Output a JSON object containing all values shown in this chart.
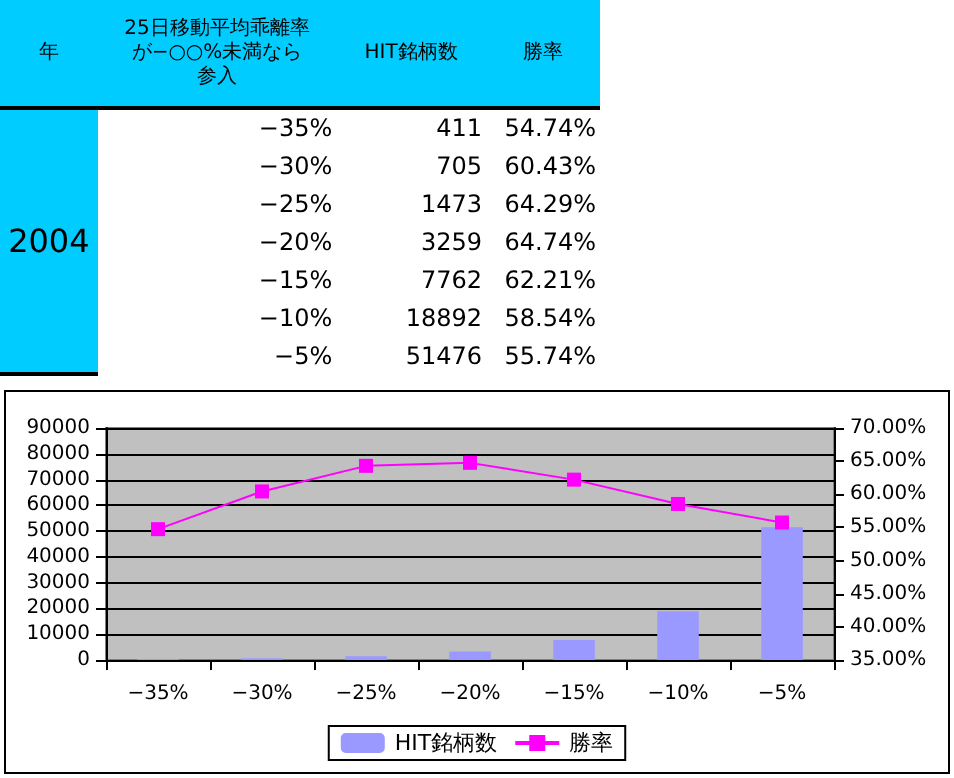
{
  "chart_data": {
    "type": "bar",
    "categories": [
      "−35%",
      "−30%",
      "−25%",
      "−20%",
      "−15%",
      "−10%",
      "−5%"
    ],
    "series": [
      {
        "name": "HIT銘柄数",
        "color": "#9999ff",
        "values": [
          411,
          705,
          1473,
          3259,
          7762,
          18892,
          51476
        ]
      },
      {
        "name": "勝率",
        "type": "line",
        "axis": "y2",
        "color": "#ff00ff",
        "values": [
          54.74,
          60.43,
          64.29,
          64.74,
          62.21,
          58.54,
          55.74
        ]
      }
    ],
    "annotations": [
      "年",
      "25日移動平均乖離率が−○○%未満なら参入",
      "2004",
      "411",
      "54.74%",
      "705",
      "60.43%",
      "1473",
      "64.29%",
      "3259",
      "64.74%",
      "7762",
      "62.21%",
      "18892",
      "58.54%",
      "51476",
      "55.74%"
    ],
    "ylim": [
      0,
      90000
    ],
    "yticks": [
      0,
      10000,
      20000,
      30000,
      40000,
      50000,
      60000,
      70000,
      80000,
      90000
    ],
    "y2lim": [
      35,
      70
    ],
    "y2ticks": [
      {
        "value": 35,
        "label": "35.00%"
      },
      {
        "value": 40,
        "label": "40.00%"
      },
      {
        "value": 45,
        "label": "45.00%"
      },
      {
        "value": 50,
        "label": "50.00%"
      },
      {
        "value": 55,
        "label": "55.00%"
      },
      {
        "value": 60,
        "label": "60.00%"
      },
      {
        "value": 65,
        "label": "65.00%"
      },
      {
        "value": 70,
        "label": "70.00%"
      }
    ],
    "grid": "y",
    "legend": "bottom",
    "marker": "square"
  }
}
